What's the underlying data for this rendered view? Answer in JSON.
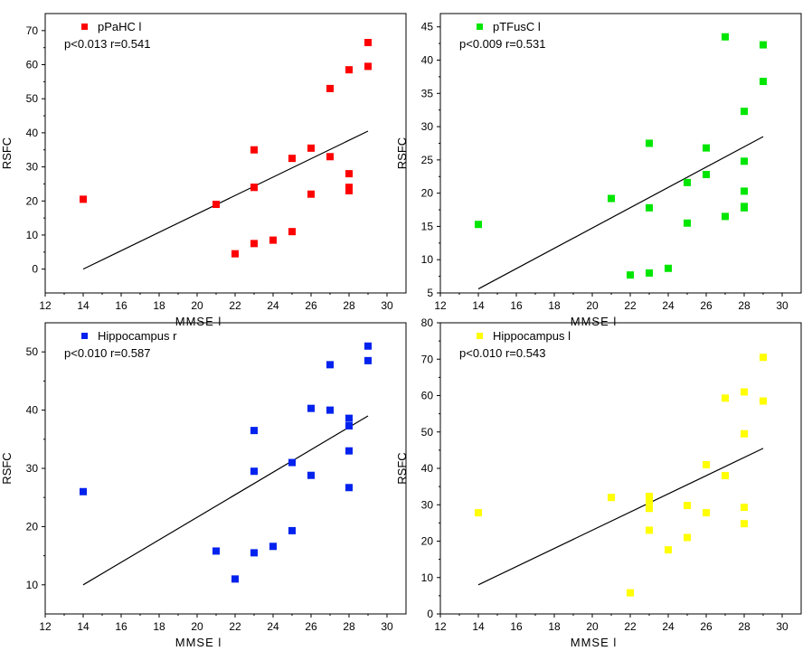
{
  "chart_data": [
    {
      "type": "scatter",
      "xlabel": "MMSE l",
      "ylabel": "RSFC",
      "xlim": [
        12,
        31
      ],
      "ylim": [
        -7,
        75
      ],
      "xticks": [
        12,
        14,
        16,
        18,
        20,
        22,
        24,
        26,
        28,
        30
      ],
      "yticks": [
        0,
        10,
        20,
        30,
        40,
        50,
        60,
        70
      ],
      "series": [
        {
          "name": "pPaHC l",
          "color": "#ff0000",
          "x": [
            14,
            21,
            22,
            23,
            23,
            23,
            23,
            24,
            25,
            25,
            26,
            26,
            27,
            27,
            28,
            28,
            28,
            28,
            29,
            29
          ],
          "y": [
            20.5,
            19,
            4.5,
            35,
            24,
            24,
            7.5,
            8.5,
            32.5,
            11,
            35.5,
            22,
            53,
            33,
            58.5,
            28,
            24,
            23,
            66.5,
            59.5
          ]
        }
      ],
      "fit_line": {
        "x": [
          14,
          29
        ],
        "y": [
          0,
          40.5
        ]
      },
      "annotation": "p<0.013  r=0.541"
    },
    {
      "type": "scatter",
      "xlabel": "MMSE l",
      "ylabel": "RSFC",
      "xlim": [
        12,
        31
      ],
      "ylim": [
        5,
        47
      ],
      "xticks": [
        12,
        14,
        16,
        18,
        20,
        22,
        24,
        26,
        28,
        30
      ],
      "yticks": [
        5,
        10,
        15,
        20,
        25,
        30,
        35,
        40,
        45
      ],
      "series": [
        {
          "name": "pTFusC l",
          "color": "#00e600",
          "x": [
            14,
            21,
            22,
            23,
            23,
            23,
            24,
            25,
            25,
            26,
            26,
            27,
            27,
            28,
            28,
            28,
            28,
            28,
            29,
            29
          ],
          "y": [
            15.3,
            19.2,
            7.7,
            27.5,
            17.8,
            8,
            8.7,
            21.6,
            15.5,
            26.8,
            22.8,
            43.5,
            16.5,
            32.3,
            24.8,
            20.3,
            18,
            17.8,
            42.3,
            36.8
          ]
        }
      ],
      "fit_line": {
        "x": [
          14,
          29
        ],
        "y": [
          5.6,
          28.5
        ]
      },
      "annotation": "p<0.009  r=0.531"
    },
    {
      "type": "scatter",
      "xlabel": "MMSE l",
      "ylabel": "RSFC",
      "xlim": [
        12,
        31
      ],
      "ylim": [
        5,
        55
      ],
      "xticks": [
        12,
        14,
        16,
        18,
        20,
        22,
        24,
        26,
        28,
        30
      ],
      "yticks": [
        10,
        20,
        30,
        40,
        50
      ],
      "series": [
        {
          "name": "Hippocampus r",
          "color": "#0022ee",
          "x": [
            14,
            21,
            22,
            23,
            23,
            23,
            24,
            25,
            25,
            26,
            26,
            27,
            27,
            28,
            28,
            28,
            28,
            29,
            29
          ],
          "y": [
            26,
            15.8,
            11,
            36.5,
            29.5,
            15.5,
            16.6,
            31,
            19.3,
            40.3,
            28.8,
            47.8,
            40,
            38.6,
            37.3,
            33,
            26.7,
            51,
            48.5
          ]
        }
      ],
      "fit_line": {
        "x": [
          14,
          29
        ],
        "y": [
          10,
          39
        ]
      },
      "annotation": "p<0.010  r=0.587"
    },
    {
      "type": "scatter",
      "xlabel": "MMSE l",
      "ylabel": "RSFC",
      "xlim": [
        12,
        31
      ],
      "ylim": [
        0,
        80
      ],
      "xticks": [
        12,
        14,
        16,
        18,
        20,
        22,
        24,
        26,
        28,
        30
      ],
      "yticks": [
        0,
        10,
        20,
        30,
        40,
        50,
        60,
        70,
        80
      ],
      "series": [
        {
          "name": "Hippocampus l",
          "color": "#ffff00",
          "x": [
            14,
            21,
            22,
            23,
            23,
            23,
            23,
            24,
            25,
            25,
            26,
            26,
            27,
            27,
            28,
            28,
            28,
            28,
            29,
            29
          ],
          "y": [
            27.8,
            32,
            5.8,
            32.3,
            29,
            23,
            31,
            17.6,
            29.8,
            21,
            41,
            27.8,
            59.3,
            38,
            61,
            49.5,
            29.3,
            24.8,
            70.5,
            58.5
          ]
        }
      ],
      "fit_line": {
        "x": [
          14,
          29
        ],
        "y": [
          8,
          45.5
        ]
      },
      "annotation": "p<0.010  r=0.543"
    }
  ]
}
